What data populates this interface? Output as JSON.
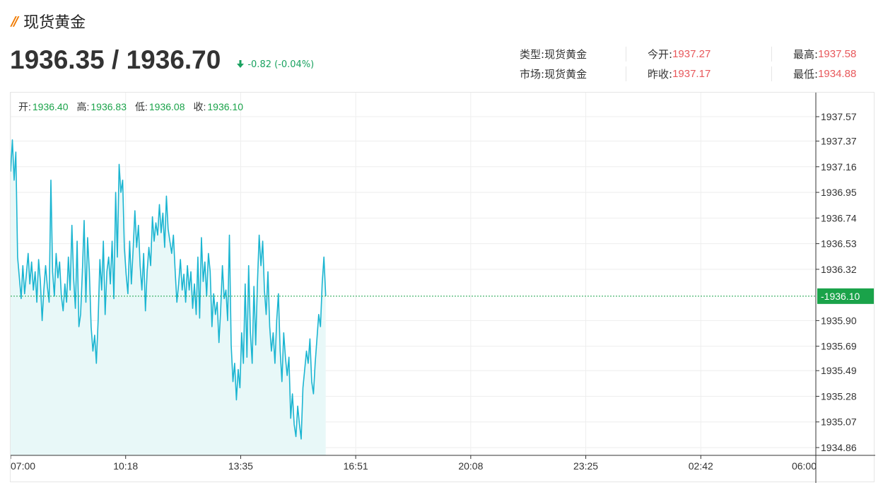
{
  "header": {
    "title": "现货黄金",
    "price": "1936.35 / 1936.70",
    "change": "-0.82 (-0.04%)"
  },
  "info": {
    "type_label": "类型:",
    "type_value": "现货黄金",
    "market_label": "市场:",
    "market_value": "现货黄金",
    "open_label": "今开:",
    "open_value": "1937.27",
    "prev_close_label": "昨收:",
    "prev_close_value": "1937.17",
    "high_label": "最高:",
    "high_value": "1937.58",
    "low_label": "最低:",
    "low_value": "1934.88"
  },
  "ohlc": {
    "open_label": "开:",
    "open_value": "1936.40",
    "high_label": "高:",
    "high_value": "1936.83",
    "low_label": "低:",
    "low_value": "1936.08",
    "close_label": "收:",
    "close_value": "1936.10"
  },
  "colors": {
    "line": "#1bb5d1",
    "area": "#e8f8f8",
    "current": "#1aa34a",
    "grid": "#eeeeee",
    "change": "#1aa260",
    "red": "#e8585b"
  },
  "chart_data": {
    "type": "area",
    "x_ticks": [
      "07:00",
      "10:18",
      "13:35",
      "16:51",
      "20:08",
      "23:25",
      "02:42",
      "06:00"
    ],
    "y_ticks": [
      "1937.57",
      "1937.37",
      "1937.16",
      "1936.95",
      "1936.74",
      "1936.53",
      "1936.32",
      "1935.90",
      "1935.69",
      "1935.49",
      "1935.28",
      "1935.07",
      "1934.86"
    ],
    "current_value": "1936.10",
    "current": 1936.1,
    "ylim": [
      1934.86,
      1937.57
    ],
    "x_range_minutes": [
      0,
      1380
    ],
    "grid": true,
    "series": [
      {
        "x": [
          0,
          3,
          6,
          9,
          12,
          15,
          18,
          21,
          24,
          27,
          30,
          33,
          36,
          39,
          42,
          45,
          48,
          51,
          54,
          57,
          60,
          63,
          66,
          69,
          72,
          75,
          78,
          81,
          84,
          87,
          90,
          93,
          96,
          99,
          102,
          105,
          108,
          111,
          114,
          117,
          120,
          123,
          126,
          129,
          132,
          135,
          138,
          141,
          144,
          147,
          150,
          153,
          156,
          159,
          162,
          165,
          168,
          171,
          174,
          177,
          180,
          183,
          186,
          189,
          192,
          195,
          198,
          201,
          204,
          207,
          210,
          213,
          216,
          219,
          222,
          225,
          228,
          231,
          234,
          237,
          240,
          243,
          246,
          249,
          252,
          255,
          258,
          261,
          264,
          267,
          270,
          273,
          276,
          279,
          282,
          285,
          288,
          291,
          294,
          297,
          300,
          303,
          306,
          309,
          312,
          315,
          318,
          321,
          324,
          327,
          330,
          333,
          336,
          339,
          342,
          345,
          348,
          351,
          354,
          357,
          360,
          363,
          366,
          369,
          372,
          375,
          378,
          381,
          384,
          387,
          390,
          393,
          396,
          399,
          402,
          405,
          408,
          411,
          414,
          417,
          420,
          423,
          426,
          429,
          432,
          435,
          438,
          441,
          444,
          447,
          450,
          453,
          456,
          459,
          462,
          465,
          468,
          471,
          474,
          477,
          480,
          483,
          486,
          489,
          492,
          495,
          498,
          501,
          504,
          507,
          510,
          513,
          516,
          519,
          522,
          525,
          528,
          531,
          534,
          537,
          540
        ],
        "y": [
          1937.12,
          1937.38,
          1937.05,
          1937.28,
          1936.42,
          1936.25,
          1936.08,
          1936.35,
          1936.12,
          1936.28,
          1936.45,
          1936.2,
          1936.38,
          1936.15,
          1936.3,
          1936.05,
          1936.4,
          1936.22,
          1935.9,
          1936.15,
          1936.35,
          1936.18,
          1936.05,
          1937.05,
          1936.3,
          1936.1,
          1936.45,
          1936.25,
          1936.38,
          1936.1,
          1935.98,
          1936.2,
          1936.05,
          1936.42,
          1936.15,
          1936.68,
          1936.25,
          1936.0,
          1936.55,
          1935.85,
          1935.95,
          1936.3,
          1936.72,
          1936.05,
          1936.58,
          1936.3,
          1935.85,
          1935.65,
          1935.78,
          1935.55,
          1935.9,
          1936.4,
          1936.15,
          1936.55,
          1935.95,
          1936.3,
          1936.42,
          1936.2,
          1936.55,
          1936.08,
          1936.95,
          1936.42,
          1937.18,
          1936.95,
          1937.05,
          1936.5,
          1936.28,
          1936.12,
          1936.55,
          1936.2,
          1936.48,
          1936.8,
          1936.5,
          1936.68,
          1936.35,
          1936.15,
          1936.45,
          1935.98,
          1936.3,
          1936.5,
          1936.35,
          1936.75,
          1936.55,
          1936.7,
          1936.6,
          1936.85,
          1936.62,
          1936.78,
          1936.5,
          1936.92,
          1936.65,
          1936.55,
          1936.45,
          1936.6,
          1936.3,
          1936.05,
          1936.2,
          1936.4,
          1936.15,
          1936.28,
          1936.05,
          1936.35,
          1936.15,
          1936.3,
          1936.0,
          1936.2,
          1935.95,
          1936.42,
          1935.92,
          1936.58,
          1936.22,
          1936.38,
          1936.1,
          1936.45,
          1936.3,
          1935.85,
          1936.12,
          1935.95,
          1936.05,
          1935.72,
          1935.98,
          1936.35,
          1936.08,
          1936.15,
          1935.9,
          1936.6,
          1935.7,
          1935.4,
          1935.55,
          1935.25,
          1935.5,
          1935.35,
          1935.8,
          1935.55,
          1936.2,
          1935.6,
          1936.35,
          1935.8,
          1935.55,
          1936.18,
          1935.7,
          1936.2,
          1936.6,
          1936.35,
          1936.55,
          1936.15,
          1935.95,
          1936.3,
          1935.85,
          1935.65,
          1935.8,
          1935.55,
          1935.9,
          1936.12,
          1935.65,
          1935.4,
          1935.8,
          1935.6,
          1935.45,
          1935.6,
          1935.1,
          1935.3,
          1935.05,
          1934.95,
          1935.2,
          1935.05,
          1934.93,
          1935.35,
          1935.5,
          1935.65,
          1935.55,
          1935.75,
          1935.4,
          1935.3,
          1935.55,
          1935.75,
          1935.95,
          1935.85,
          1936.2,
          1936.42,
          1936.1
        ]
      }
    ]
  }
}
